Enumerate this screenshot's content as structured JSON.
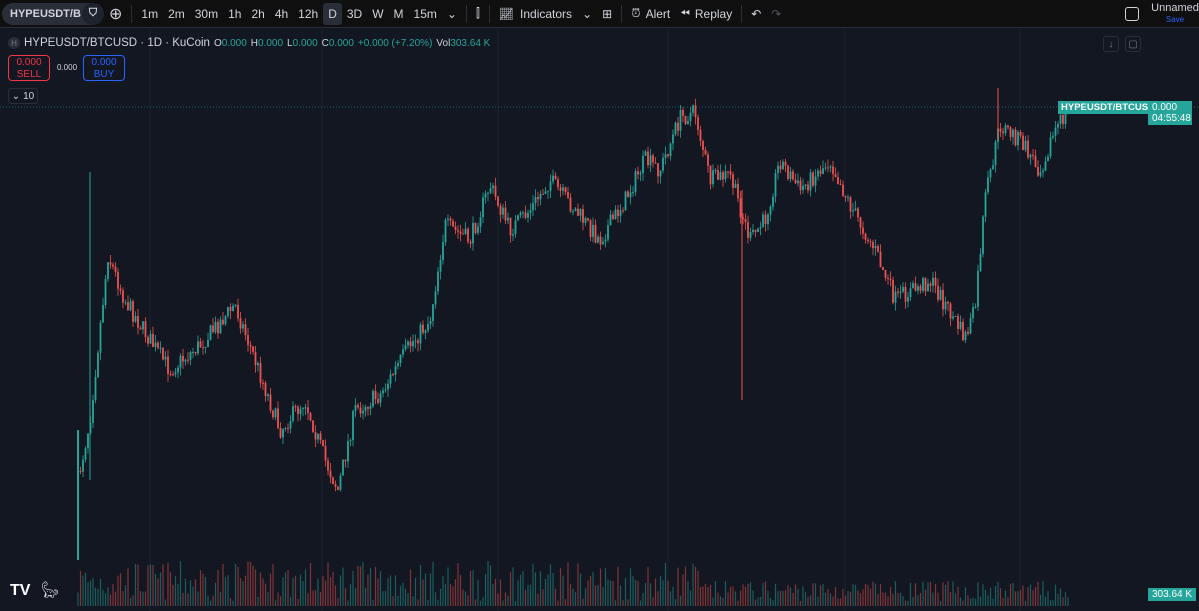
{
  "toolbar": {
    "symbol": "HYPEUSDT/B",
    "intervals": [
      "1m",
      "2m",
      "30m",
      "1h",
      "2h",
      "4h",
      "12h",
      "D",
      "3D",
      "W",
      "M",
      "15m"
    ],
    "active_interval": "D",
    "indicators": "Indicators",
    "alert": "Alert",
    "replay": "Replay",
    "layout_name": "Unnamed",
    "save": "Save"
  },
  "legend": {
    "title": "HYPEUSDT/BTCUSD · 1D · KuCoin",
    "o_label": "O",
    "o": "0.000",
    "h_label": "H",
    "h": "0.000",
    "l_label": "L",
    "l": "0.000",
    "c_label": "C",
    "c": "0.000",
    "change": "+0.000 (+7.20%)",
    "vol_label": "Vol",
    "vol": "303.64 K"
  },
  "trade": {
    "sell_price": "0.000",
    "sell": "SELL",
    "spread": "0.000",
    "buy_price": "0.000",
    "buy": "BUY"
  },
  "collapse": {
    "count": "10"
  },
  "price_label": {
    "symbol": "HYPEUSDT/BTCUSD",
    "price": "0.000",
    "countdown": "04:55:48"
  },
  "volume_label": "303.64 K",
  "colors": {
    "up": "#26a69a",
    "down": "#ef5350",
    "background": "#131722"
  }
}
